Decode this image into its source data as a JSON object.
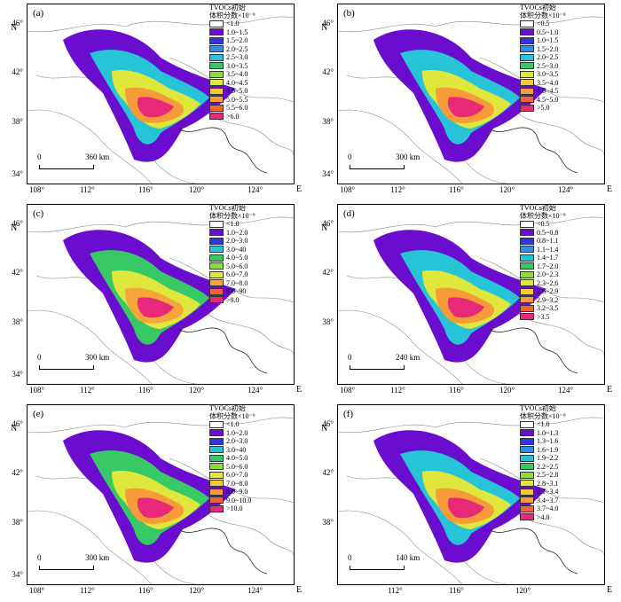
{
  "panels": [
    {
      "label": "(a)",
      "legend_title": [
        "TVOCs初始",
        "体积分数×10⁻⁹"
      ],
      "legend": [
        {
          "label": "<1.0",
          "color": "#ffffff"
        },
        {
          "label": "1.0~1.5",
          "color": "#6a0dcf"
        },
        {
          "label": "1.5~2.0",
          "color": "#3434e0"
        },
        {
          "label": "2.0~2.5",
          "color": "#2f8ee8"
        },
        {
          "label": "2.5~3.0",
          "color": "#27c3d6"
        },
        {
          "label": "3.0~3.5",
          "color": "#37c965"
        },
        {
          "label": "3.5~4.0",
          "color": "#8fdb3a"
        },
        {
          "label": "4.0~4.5",
          "color": "#dfe73c"
        },
        {
          "label": "4.5~5.0",
          "color": "#f5c83a"
        },
        {
          "label": "5.0~5.5",
          "color": "#f69a3a"
        },
        {
          "label": "5.5~6.0",
          "color": "#f2633a"
        },
        {
          "label": ">6.0",
          "color": "#e8297a"
        }
      ],
      "y_ticks": [
        "46°",
        "42°",
        "38°",
        "34°"
      ],
      "x_ticks": [
        "108°",
        "112°",
        "116°",
        "120°",
        "124°"
      ],
      "north": "N",
      "east": "E",
      "scale_zero": "0",
      "scale_dist": "360 km"
    },
    {
      "label": "(b)",
      "legend_title": [
        "TVOCs初始",
        "体积分数×10⁻⁹"
      ],
      "legend": [
        {
          "label": "<0.5",
          "color": "#ffffff"
        },
        {
          "label": "0.5~1.0",
          "color": "#6a0dcf"
        },
        {
          "label": "1.0~1.5",
          "color": "#3434e0"
        },
        {
          "label": "1.5~2.0",
          "color": "#2f8ee8"
        },
        {
          "label": "2.0~2.5",
          "color": "#27c3d6"
        },
        {
          "label": "2.5~3.0",
          "color": "#37c965"
        },
        {
          "label": "3.0~3.5",
          "color": "#dfe73c"
        },
        {
          "label": "3.5~4.0",
          "color": "#f5c83a"
        },
        {
          "label": "4.0~4.5",
          "color": "#f69a3a"
        },
        {
          "label": "4.5~5.0",
          "color": "#f2633a"
        },
        {
          "label": ">5.0",
          "color": "#e8297a"
        }
      ],
      "y_ticks": [
        "46°",
        "42°",
        "38°",
        "34°"
      ],
      "x_ticks": [
        "108°",
        "112°",
        "116°",
        "120°",
        "124°"
      ],
      "north": "N",
      "east": "E",
      "scale_zero": "0",
      "scale_dist": "300 km"
    },
    {
      "label": "(c)",
      "legend_title": [
        "TVOCs初始",
        "体积分数×10⁻⁹"
      ],
      "legend": [
        {
          "label": "<1.0",
          "color": "#ffffff"
        },
        {
          "label": "1.0~2.0",
          "color": "#6a0dcf"
        },
        {
          "label": "2.0~3.0",
          "color": "#3434e0"
        },
        {
          "label": "3.0~40",
          "color": "#27c3d6"
        },
        {
          "label": "4.0~5.0",
          "color": "#37c965"
        },
        {
          "label": "5.0~6.0",
          "color": "#8fdb3a"
        },
        {
          "label": "6.0~7.0",
          "color": "#dfe73c"
        },
        {
          "label": "7.0~8.0",
          "color": "#f5a63a"
        },
        {
          "label": "8.0~90",
          "color": "#f2633a"
        },
        {
          "label": ">9.0",
          "color": "#e8297a"
        }
      ],
      "y_ticks": [
        "46°",
        "42°",
        "38°",
        "34°"
      ],
      "x_ticks": [
        "108°",
        "112°",
        "116°",
        "120°",
        "124°"
      ],
      "north": "N",
      "east": "E",
      "scale_zero": "0",
      "scale_dist": "300 km"
    },
    {
      "label": "(d)",
      "legend_title": [
        "TVOCs初始",
        "体积分数×10⁻⁹"
      ],
      "legend": [
        {
          "label": "<0.5",
          "color": "#ffffff"
        },
        {
          "label": "0.5~0.8",
          "color": "#6a0dcf"
        },
        {
          "label": "0.8~1.1",
          "color": "#3434e0"
        },
        {
          "label": "1.1~1.4",
          "color": "#2f8ee8"
        },
        {
          "label": "1.4~1.7",
          "color": "#27c3d6"
        },
        {
          "label": "1.7~2.0",
          "color": "#37c965"
        },
        {
          "label": "2.0~2.3",
          "color": "#8fdb3a"
        },
        {
          "label": "2.3~2.6",
          "color": "#dfe73c"
        },
        {
          "label": "2.6~2.9",
          "color": "#f5c83a"
        },
        {
          "label": "2.9~3.2",
          "color": "#f69a3a"
        },
        {
          "label": "3.2~3.5",
          "color": "#f2633a"
        },
        {
          "label": ">3.5",
          "color": "#e8297a"
        }
      ],
      "y_ticks": [
        "46°",
        "42°",
        "38°"
      ],
      "x_ticks": [
        "108°",
        "112°",
        "116°",
        "120°",
        "124°"
      ],
      "north": "N",
      "east": "E",
      "scale_zero": "0",
      "scale_dist": "240 km"
    },
    {
      "label": "(e)",
      "legend_title": [
        "TVOCs初始",
        "体积分数×10⁻⁹"
      ],
      "legend": [
        {
          "label": "<1.0",
          "color": "#ffffff"
        },
        {
          "label": "1.0~2.0",
          "color": "#6a0dcf"
        },
        {
          "label": "2.0~3.0",
          "color": "#3434e0"
        },
        {
          "label": "3.0~40",
          "color": "#27c3d6"
        },
        {
          "label": "4.0~5.0",
          "color": "#37c965"
        },
        {
          "label": "5.0~6.0",
          "color": "#8fdb3a"
        },
        {
          "label": "6.0~7.0",
          "color": "#dfe73c"
        },
        {
          "label": "7.0~8.0",
          "color": "#f5c83a"
        },
        {
          "label": "8.0~9.0",
          "color": "#f69a3a"
        },
        {
          "label": "9.0~10.0",
          "color": "#f2633a"
        },
        {
          "label": ">10.0",
          "color": "#e8297a"
        }
      ],
      "y_ticks": [
        "46°",
        "42°",
        "38°",
        "34°"
      ],
      "x_ticks": [
        "108°",
        "112°",
        "116°",
        "120°",
        "124°"
      ],
      "north": "N",
      "east": "E",
      "scale_zero": "0",
      "scale_dist": "300 km"
    },
    {
      "label": "(f)",
      "legend_title": [
        "TVOCs初始",
        "体积分数×10⁻⁹"
      ],
      "legend": [
        {
          "label": "<1.0",
          "color": "#ffffff"
        },
        {
          "label": "1.0~1.3",
          "color": "#6a0dcf"
        },
        {
          "label": "1.3~1.6",
          "color": "#3434e0"
        },
        {
          "label": "1.6~1.9",
          "color": "#2f8ee8"
        },
        {
          "label": "1.9~2.2",
          "color": "#27c3d6"
        },
        {
          "label": "2.2~2.5",
          "color": "#37c965"
        },
        {
          "label": "2.5~2.8",
          "color": "#8fdb3a"
        },
        {
          "label": "2.8~3.1",
          "color": "#dfe73c"
        },
        {
          "label": "3.1~3.4",
          "color": "#f5c83a"
        },
        {
          "label": "3.4~3.7",
          "color": "#f69a3a"
        },
        {
          "label": "3.7~4.0",
          "color": "#f2633a"
        },
        {
          "label": ">4.0",
          "color": "#e8297a"
        }
      ],
      "y_ticks": [
        "46°",
        "42°",
        "38°"
      ],
      "x_ticks": [
        "112°",
        "116°",
        "120°"
      ],
      "north": "N",
      "east": "E",
      "scale_zero": "0",
      "scale_dist": "140 km"
    }
  ]
}
